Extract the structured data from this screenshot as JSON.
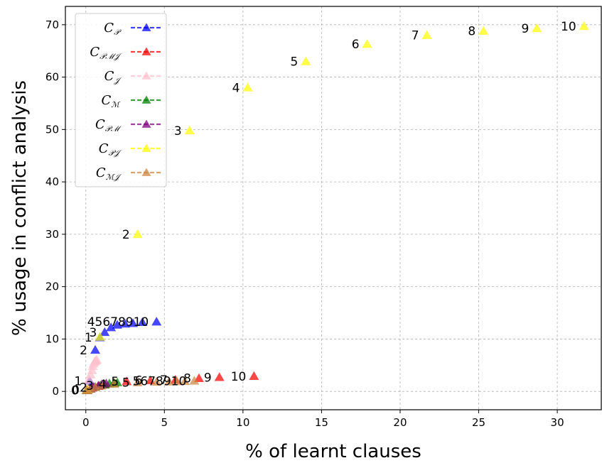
{
  "chart_data": {
    "type": "scatter",
    "title": "",
    "xlabel": "% of learnt clauses",
    "ylabel": "% usage in conflict analysis",
    "xlim": [
      -1.3,
      32.8
    ],
    "ylim": [
      -3.5,
      73.5
    ],
    "xticks": [
      0,
      5,
      10,
      15,
      20,
      25,
      30
    ],
    "yticks": [
      0,
      10,
      20,
      30,
      40,
      50,
      60,
      70
    ],
    "grid": true,
    "legend_position": "top-left",
    "series": [
      {
        "name": "C_P",
        "legend_main": "C",
        "legend_sub": "𝒫",
        "color": "#0000ff",
        "points": [
          {
            "x": 0.1,
            "y": 0.3,
            "label": "0"
          },
          {
            "x": 0.25,
            "y": 2.0,
            "label": "1"
          },
          {
            "x": 0.6,
            "y": 7.9,
            "label": "2"
          },
          {
            "x": 0.9,
            "y": 10.3,
            "label": "3"
          },
          {
            "x": 1.2,
            "y": 11.3,
            "label": "4"
          },
          {
            "x": 1.6,
            "y": 12.2,
            "label": "5"
          },
          {
            "x": 2.0,
            "y": 12.7,
            "label": "6"
          },
          {
            "x": 2.5,
            "y": 12.9,
            "label": "7"
          },
          {
            "x": 3.0,
            "y": 13.0,
            "label": "8"
          },
          {
            "x": 3.6,
            "y": 13.2,
            "label": "9"
          },
          {
            "x": 4.5,
            "y": 13.3,
            "label": "10"
          }
        ]
      },
      {
        "name": "C_PMJ",
        "legend_main": "C",
        "legend_sub": "𝒫ℳ𝒥",
        "color": "#ff0000",
        "points": [
          {
            "x": 0.1,
            "y": 0.2,
            "label": "0"
          },
          {
            "x": 0.4,
            "y": 0.7,
            "label": "1"
          },
          {
            "x": 0.8,
            "y": 1.0,
            "label": "2"
          },
          {
            "x": 1.2,
            "y": 1.3,
            "label": "3"
          },
          {
            "x": 1.8,
            "y": 1.6,
            "label": "4"
          },
          {
            "x": 2.6,
            "y": 1.9,
            "label": "5"
          },
          {
            "x": 4.1,
            "y": 2.1,
            "label": "6"
          },
          {
            "x": 5.7,
            "y": 2.2,
            "label": "7"
          },
          {
            "x": 7.2,
            "y": 2.5,
            "label": "8"
          },
          {
            "x": 8.5,
            "y": 2.7,
            "label": "9"
          },
          {
            "x": 10.7,
            "y": 2.9,
            "label": "10"
          }
        ]
      },
      {
        "name": "C_J",
        "legend_main": "C",
        "legend_sub": "𝒥",
        "color": "#ffc0cb",
        "points": [
          {
            "x": 0.05,
            "y": 0.2
          },
          {
            "x": 0.1,
            "y": 1.2
          },
          {
            "x": 0.2,
            "y": 2.3
          },
          {
            "x": 0.3,
            "y": 3.2
          },
          {
            "x": 0.4,
            "y": 4.0
          },
          {
            "x": 0.45,
            "y": 4.8
          },
          {
            "x": 0.5,
            "y": 5.3
          },
          {
            "x": 0.55,
            "y": 5.6
          },
          {
            "x": 0.6,
            "y": 5.8
          },
          {
            "x": 0.65,
            "y": 5.9
          },
          {
            "x": 0.7,
            "y": 6.0
          }
        ]
      },
      {
        "name": "C_M",
        "legend_main": "C",
        "legend_sub": "ℳ",
        "color": "#008000",
        "points": [
          {
            "x": 0.05,
            "y": 0.2
          },
          {
            "x": 0.3,
            "y": 0.5
          },
          {
            "x": 0.6,
            "y": 0.8
          },
          {
            "x": 0.9,
            "y": 1.1
          },
          {
            "x": 1.2,
            "y": 1.3
          },
          {
            "x": 1.5,
            "y": 1.5
          },
          {
            "x": 1.8,
            "y": 1.6
          },
          {
            "x": 2.0,
            "y": 1.7
          }
        ]
      },
      {
        "name": "C_PM",
        "legend_main": "C",
        "legend_sub": "𝒫ℳ",
        "color": "#800080",
        "points": [
          {
            "x": 0.1,
            "y": 0.2
          },
          {
            "x": 0.3,
            "y": 0.5
          },
          {
            "x": 0.5,
            "y": 0.8
          },
          {
            "x": 0.8,
            "y": 1.1
          },
          {
            "x": 1.0,
            "y": 1.3
          },
          {
            "x": 1.3,
            "y": 1.5
          }
        ]
      },
      {
        "name": "C_PJ",
        "legend_main": "C",
        "legend_sub": "𝒫𝒥",
        "color": "#ffff00",
        "points": [
          {
            "x": 0.1,
            "y": 0.3,
            "label": "0"
          },
          {
            "x": 0.9,
            "y": 10.4,
            "label": "1"
          },
          {
            "x": 3.3,
            "y": 30.0,
            "label": "2"
          },
          {
            "x": 6.6,
            "y": 49.8,
            "label": "3"
          },
          {
            "x": 10.3,
            "y": 58.0,
            "label": "4"
          },
          {
            "x": 14.0,
            "y": 63.0,
            "label": "5"
          },
          {
            "x": 17.9,
            "y": 66.3,
            "label": "6"
          },
          {
            "x": 21.7,
            "y": 68.0,
            "label": "7"
          },
          {
            "x": 25.3,
            "y": 68.8,
            "label": "8"
          },
          {
            "x": 28.7,
            "y": 69.3,
            "label": "9"
          },
          {
            "x": 31.7,
            "y": 69.7,
            "label": "10"
          }
        ]
      },
      {
        "name": "C_MJ",
        "legend_main": "C",
        "legend_sub": "ℳ𝒥",
        "color": "#cd853f",
        "points": [
          {
            "x": 0.05,
            "y": 0.2,
            "label": "0"
          },
          {
            "x": 0.3,
            "y": 0.5,
            "label": "1"
          },
          {
            "x": 0.6,
            "y": 0.8,
            "label": "2"
          },
          {
            "x": 1.0,
            "y": 1.1,
            "label": "3"
          },
          {
            "x": 1.8,
            "y": 1.4,
            "label": "4"
          },
          {
            "x": 3.3,
            "y": 1.7,
            "label": "5"
          },
          {
            "x": 4.5,
            "y": 1.8,
            "label": "6"
          },
          {
            "x": 5.3,
            "y": 1.85,
            "label": "7"
          },
          {
            "x": 5.8,
            "y": 1.9,
            "label": "8"
          },
          {
            "x": 6.3,
            "y": 1.95,
            "label": "9"
          },
          {
            "x": 6.9,
            "y": 2.0,
            "label": "10"
          }
        ]
      }
    ],
    "annotations": [
      {
        "series": "C_P",
        "text": "0",
        "x": 0.1,
        "y": 0.3
      },
      {
        "series": "C_P",
        "text": "1",
        "x": 0.25,
        "y": 2.0
      },
      {
        "series": "C_P",
        "text": "2",
        "x": 0.6,
        "y": 7.9
      },
      {
        "series": "C_P",
        "text": "1",
        "x": 0.9,
        "y": 10.3
      },
      {
        "series": "C_P",
        "text": "3",
        "x": 1.2,
        "y": 11.3
      },
      {
        "series": "C_P",
        "text": "45678910",
        "x": 4.5,
        "y": 13.3
      },
      {
        "series": "C_PJ",
        "text": "2",
        "x": 3.3,
        "y": 30.0
      },
      {
        "series": "C_PJ",
        "text": "3",
        "x": 6.6,
        "y": 49.8
      },
      {
        "series": "C_PJ",
        "text": "4",
        "x": 10.3,
        "y": 58.0
      },
      {
        "series": "C_PJ",
        "text": "5",
        "x": 14.0,
        "y": 63.0
      },
      {
        "series": "C_PJ",
        "text": "6",
        "x": 17.9,
        "y": 66.3
      },
      {
        "series": "C_PJ",
        "text": "7",
        "x": 21.7,
        "y": 68.0
      },
      {
        "series": "C_PJ",
        "text": "8",
        "x": 25.3,
        "y": 68.8
      },
      {
        "series": "C_PJ",
        "text": "9",
        "x": 28.7,
        "y": 69.3
      },
      {
        "series": "C_PJ",
        "text": "10",
        "x": 31.7,
        "y": 69.7
      },
      {
        "series": "C_PMJ",
        "text": "5",
        "x": 2.6,
        "y": 1.9
      },
      {
        "series": "C_PMJ",
        "text": "6",
        "x": 4.1,
        "y": 2.1
      },
      {
        "series": "C_PMJ",
        "text": "7",
        "x": 5.7,
        "y": 2.2
      },
      {
        "series": "C_PMJ",
        "text": "8",
        "x": 7.2,
        "y": 2.5
      },
      {
        "series": "C_PMJ",
        "text": "9",
        "x": 8.5,
        "y": 2.7
      },
      {
        "series": "C_PMJ",
        "text": "10",
        "x": 10.7,
        "y": 2.9
      },
      {
        "series": "C_MJ",
        "text": "0",
        "x": 0.05,
        "y": 0.2
      },
      {
        "series": "C_MJ",
        "text": "2",
        "x": 0.6,
        "y": 0.8
      },
      {
        "series": "C_MJ",
        "text": "3",
        "x": 1.0,
        "y": 1.1
      },
      {
        "series": "C_MJ",
        "text": "4",
        "x": 1.8,
        "y": 1.4
      },
      {
        "series": "C_MJ",
        "text": "5",
        "x": 3.3,
        "y": 1.7
      },
      {
        "series": "C_MJ",
        "text": "5678910",
        "x": 6.9,
        "y": 2.0
      }
    ]
  }
}
